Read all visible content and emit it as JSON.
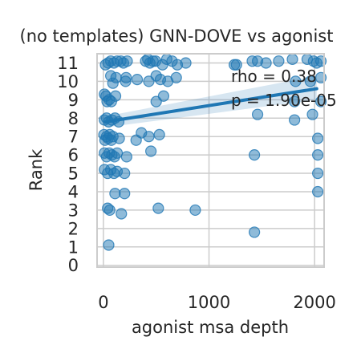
{
  "chart_data": {
    "type": "scatter",
    "title": "(no templates) GNN-DOVE vs agonist",
    "xlabel": "agonist msa depth",
    "ylabel": "Rank",
    "xlim": [
      -60,
      2090
    ],
    "ylim": [
      -0.1,
      11.5
    ],
    "xticks": [
      0,
      1000,
      2000
    ],
    "xtick_labels": [
      "0",
      "1000",
      "2000"
    ],
    "yticks": [
      0,
      1,
      2,
      3,
      4,
      5,
      6,
      7,
      8,
      9,
      10,
      11
    ],
    "ytick_labels": [
      "0",
      "1",
      "2",
      "3",
      "4",
      "5",
      "6",
      "7",
      "8",
      "9",
      "10",
      "11"
    ],
    "grid": true,
    "colors": {
      "points": "#1f77b4",
      "line": "#1f77b4",
      "band": "#1f77b4",
      "grid": "#cccccc"
    },
    "annotation": {
      "rho": "rho = 0.38",
      "p": "p = 1.90e-05"
    },
    "regression": {
      "x": [
        20,
        2020
      ],
      "y": [
        7.8,
        9.6
      ],
      "ci_upper": [
        8.1,
        10.3
      ],
      "ci_lower": [
        7.5,
        9.0
      ]
    },
    "points": [
      {
        "x": 20,
        "y": 10.9
      },
      {
        "x": 45,
        "y": 11.0
      },
      {
        "x": 70,
        "y": 11.1
      },
      {
        "x": 100,
        "y": 11.0
      },
      {
        "x": 130,
        "y": 11.1
      },
      {
        "x": 165,
        "y": 11.1
      },
      {
        "x": 190,
        "y": 11.0
      },
      {
        "x": 225,
        "y": 11.1
      },
      {
        "x": 400,
        "y": 11.1
      },
      {
        "x": 420,
        "y": 11.2
      },
      {
        "x": 440,
        "y": 11.0
      },
      {
        "x": 470,
        "y": 11.1
      },
      {
        "x": 495,
        "y": 11.1
      },
      {
        "x": 560,
        "y": 10.9
      },
      {
        "x": 600,
        "y": 11.2
      },
      {
        "x": 650,
        "y": 11.1
      },
      {
        "x": 700,
        "y": 10.9
      },
      {
        "x": 780,
        "y": 11.0
      },
      {
        "x": 1240,
        "y": 10.9
      },
      {
        "x": 1260,
        "y": 10.9
      },
      {
        "x": 1410,
        "y": 11.1
      },
      {
        "x": 1460,
        "y": 11.1
      },
      {
        "x": 1540,
        "y": 11.0
      },
      {
        "x": 1660,
        "y": 11.1
      },
      {
        "x": 1790,
        "y": 11.2
      },
      {
        "x": 1930,
        "y": 11.2
      },
      {
        "x": 1990,
        "y": 11.1
      },
      {
        "x": 2020,
        "y": 11.0
      },
      {
        "x": 2060,
        "y": 11.1
      },
      {
        "x": 70,
        "y": 10.3
      },
      {
        "x": 90,
        "y": 9.9
      },
      {
        "x": 120,
        "y": 10.2
      },
      {
        "x": 210,
        "y": 10.0
      },
      {
        "x": 215,
        "y": 10.2
      },
      {
        "x": 320,
        "y": 10.1
      },
      {
        "x": 430,
        "y": 10.0
      },
      {
        "x": 500,
        "y": 10.3
      },
      {
        "x": 540,
        "y": 10.1
      },
      {
        "x": 610,
        "y": 10.0
      },
      {
        "x": 690,
        "y": 10.2
      },
      {
        "x": 1820,
        "y": 10.0
      },
      {
        "x": 1960,
        "y": 10.0
      },
      {
        "x": 2060,
        "y": 10.2
      },
      {
        "x": 10,
        "y": 9.3
      },
      {
        "x": 25,
        "y": 9.2
      },
      {
        "x": 35,
        "y": 8.9
      },
      {
        "x": 55,
        "y": 9.0
      },
      {
        "x": 75,
        "y": 8.9
      },
      {
        "x": 115,
        "y": 9.2
      },
      {
        "x": 500,
        "y": 8.9
      },
      {
        "x": 570,
        "y": 9.2
      },
      {
        "x": 1810,
        "y": 8.9
      },
      {
        "x": 2060,
        "y": 8.9
      },
      {
        "x": 10,
        "y": 7.9
      },
      {
        "x": 30,
        "y": 8.0
      },
      {
        "x": 50,
        "y": 7.8
      },
      {
        "x": 80,
        "y": 7.9
      },
      {
        "x": 110,
        "y": 8.0
      },
      {
        "x": 145,
        "y": 7.8
      },
      {
        "x": 1460,
        "y": 8.2
      },
      {
        "x": 1810,
        "y": 7.9
      },
      {
        "x": 1980,
        "y": 8.2
      },
      {
        "x": 5,
        "y": 7.1
      },
      {
        "x": 15,
        "y": 6.8
      },
      {
        "x": 30,
        "y": 7.0
      },
      {
        "x": 45,
        "y": 6.9
      },
      {
        "x": 60,
        "y": 7.1
      },
      {
        "x": 75,
        "y": 6.8
      },
      {
        "x": 90,
        "y": 7.0
      },
      {
        "x": 150,
        "y": 6.9
      },
      {
        "x": 310,
        "y": 6.8
      },
      {
        "x": 360,
        "y": 7.2
      },
      {
        "x": 430,
        "y": 7.0
      },
      {
        "x": 530,
        "y": 7.1
      },
      {
        "x": 2030,
        "y": 6.9
      },
      {
        "x": 10,
        "y": 6.1
      },
      {
        "x": 30,
        "y": 5.9
      },
      {
        "x": 55,
        "y": 6.1
      },
      {
        "x": 80,
        "y": 6.0
      },
      {
        "x": 105,
        "y": 5.9
      },
      {
        "x": 130,
        "y": 6.1
      },
      {
        "x": 220,
        "y": 5.9
      },
      {
        "x": 450,
        "y": 6.2
      },
      {
        "x": 1430,
        "y": 6.0
      },
      {
        "x": 2030,
        "y": 6.0
      },
      {
        "x": 10,
        "y": 5.2
      },
      {
        "x": 40,
        "y": 5.0
      },
      {
        "x": 70,
        "y": 5.2
      },
      {
        "x": 100,
        "y": 5.0
      },
      {
        "x": 130,
        "y": 5.1
      },
      {
        "x": 200,
        "y": 5.0
      },
      {
        "x": 2030,
        "y": 5.0
      },
      {
        "x": 110,
        "y": 3.9
      },
      {
        "x": 200,
        "y": 3.9
      },
      {
        "x": 2030,
        "y": 4.0
      },
      {
        "x": 40,
        "y": 3.1
      },
      {
        "x": 60,
        "y": 3.0
      },
      {
        "x": 170,
        "y": 2.8
      },
      {
        "x": 520,
        "y": 3.1
      },
      {
        "x": 870,
        "y": 3.0
      },
      {
        "x": 1430,
        "y": 1.8
      },
      {
        "x": 50,
        "y": 1.1
      }
    ]
  }
}
